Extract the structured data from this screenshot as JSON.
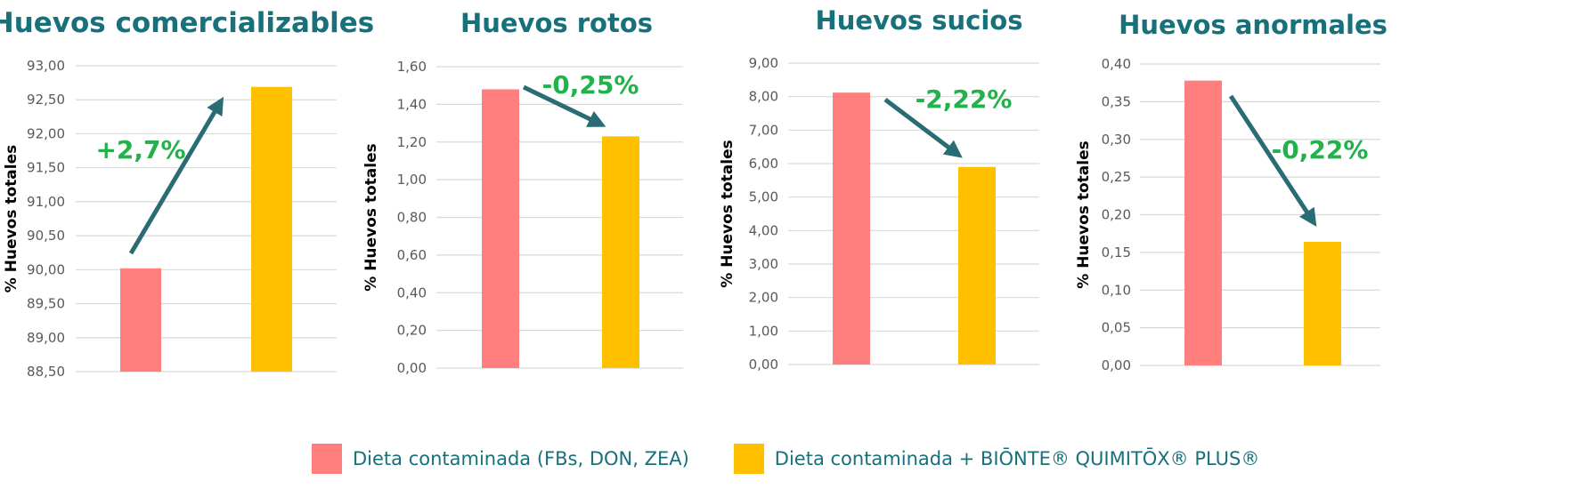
{
  "legend": {
    "series_a": "Dieta contaminada (FBs, DON, ZEA)",
    "series_b": "Dieta contaminada + BIŌNTE® QUIMITŌX® PLUS®"
  },
  "colors": {
    "series_a": "#ff7f7f",
    "series_b": "#ffc000",
    "title": "#17707a",
    "change": "#21b24b",
    "arrow": "#2a6c73"
  },
  "chart_data": [
    {
      "type": "bar",
      "title": "Huevos comercializables",
      "ylabel": "% Huevos totales",
      "ylim": [
        88.5,
        93.0
      ],
      "yticks": [
        "88,50",
        "89,00",
        "89,50",
        "90,00",
        "90,50",
        "91,00",
        "91,50",
        "92,00",
        "92,50",
        "93,00"
      ],
      "series": [
        {
          "name": "Dieta contaminada (FBs, DON, ZEA)",
          "values": [
            90.02
          ]
        },
        {
          "name": "Dieta contaminada + BIŌNTE® QUIMITŌX® PLUS®",
          "values": [
            92.69
          ]
        }
      ],
      "annotation": "+2,7%",
      "arrow": "up",
      "grid": true
    },
    {
      "type": "bar",
      "title": "Huevos rotos",
      "ylabel": "% Huevos totales",
      "ylim": [
        0,
        1.6
      ],
      "yticks": [
        "0,00",
        "0,20",
        "0,40",
        "0,60",
        "0,80",
        "1,00",
        "1,20",
        "1,40",
        "1,60"
      ],
      "series": [
        {
          "name": "Dieta contaminada (FBs, DON, ZEA)",
          "values": [
            1.48
          ]
        },
        {
          "name": "Dieta contaminada + BIŌNTE® QUIMITŌX® PLUS®",
          "values": [
            1.23
          ]
        }
      ],
      "annotation": "-0,25%",
      "arrow": "down",
      "grid": true
    },
    {
      "type": "bar",
      "title": "Huevos sucios",
      "ylabel": "% Huevos totales",
      "ylim": [
        0,
        9.0
      ],
      "yticks": [
        "0,00",
        "1,00",
        "2,00",
        "3,00",
        "4,00",
        "5,00",
        "6,00",
        "7,00",
        "8,00",
        "9,00"
      ],
      "series": [
        {
          "name": "Dieta contaminada (FBs, DON, ZEA)",
          "values": [
            8.12
          ]
        },
        {
          "name": "Dieta contaminada + BIŌNTE® QUIMITŌX® PLUS®",
          "values": [
            5.9
          ]
        }
      ],
      "annotation": "-2,22%",
      "arrow": "down",
      "grid": true
    },
    {
      "type": "bar",
      "title": "Huevos anormales",
      "ylabel": "% Huevos totales",
      "ylim": [
        0,
        0.4
      ],
      "yticks": [
        "0,00",
        "0,05",
        "0,10",
        "0,15",
        "0,20",
        "0,25",
        "0,30",
        "0,35",
        "0,40"
      ],
      "series": [
        {
          "name": "Dieta contaminada (FBs, DON, ZEA)",
          "values": [
            0.378
          ]
        },
        {
          "name": "Dieta contaminada + BIŌNTE® QUIMITŌX® PLUS®",
          "values": [
            0.164
          ]
        }
      ],
      "annotation": "-0,22%",
      "arrow": "down",
      "grid": true
    }
  ]
}
